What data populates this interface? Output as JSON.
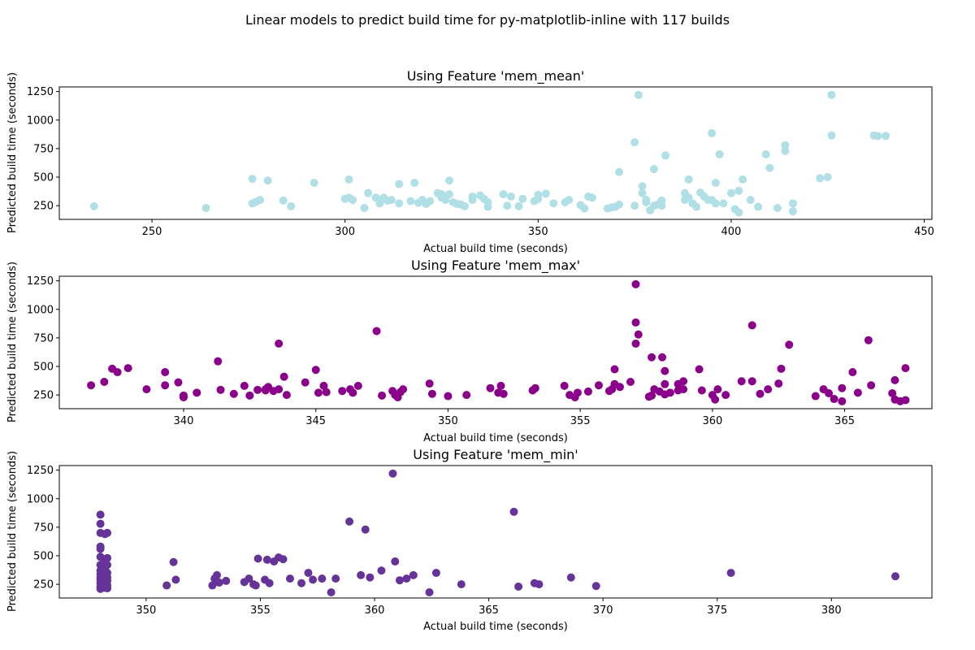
{
  "figure": {
    "suptitle": "Linear models to predict build time for py-matplotlib-inline with 117 builds"
  },
  "chart_data": [
    {
      "type": "scatter",
      "title": "Using Feature 'mem_mean'",
      "xlabel": "Actual build time (seconds)",
      "ylabel": "Predicted build time (seconds)",
      "xlim": [
        226,
        452
      ],
      "ylim": [
        130,
        1290
      ],
      "xticks": [
        250,
        300,
        350,
        400,
        450
      ],
      "yticks": [
        250,
        500,
        750,
        1000,
        1250
      ],
      "color": "#b0dfe5",
      "grid": false,
      "points": [
        [
          235,
          245
        ],
        [
          264,
          230
        ],
        [
          276,
          485
        ],
        [
          276,
          270
        ],
        [
          277,
          285
        ],
        [
          278,
          300
        ],
        [
          280,
          470
        ],
        [
          284,
          295
        ],
        [
          286,
          245
        ],
        [
          292,
          450
        ],
        [
          300,
          310
        ],
        [
          301,
          320
        ],
        [
          301,
          480
        ],
        [
          302,
          300
        ],
        [
          305,
          230
        ],
        [
          306,
          360
        ],
        [
          308,
          320
        ],
        [
          309,
          270
        ],
        [
          310,
          320
        ],
        [
          311,
          295
        ],
        [
          312,
          300
        ],
        [
          314,
          440
        ],
        [
          314,
          270
        ],
        [
          317,
          290
        ],
        [
          318,
          450
        ],
        [
          319,
          275
        ],
        [
          320,
          300
        ],
        [
          321,
          265
        ],
        [
          321,
          275
        ],
        [
          322,
          290
        ],
        [
          324,
          360
        ],
        [
          325,
          350
        ],
        [
          325,
          320
        ],
        [
          326,
          300
        ],
        [
          327,
          350
        ],
        [
          327,
          470
        ],
        [
          328,
          280
        ],
        [
          329,
          265
        ],
        [
          330,
          260
        ],
        [
          331,
          245
        ],
        [
          333,
          300
        ],
        [
          333,
          330
        ],
        [
          335,
          340
        ],
        [
          336,
          310
        ],
        [
          337,
          280
        ],
        [
          337,
          240
        ],
        [
          341,
          350
        ],
        [
          342,
          250
        ],
        [
          343,
          330
        ],
        [
          345,
          245
        ],
        [
          346,
          310
        ],
        [
          349,
          290
        ],
        [
          350,
          310
        ],
        [
          350,
          345
        ],
        [
          352,
          355
        ],
        [
          354,
          270
        ],
        [
          357,
          280
        ],
        [
          358,
          300
        ],
        [
          361,
          255
        ],
        [
          362,
          225
        ],
        [
          363,
          330
        ],
        [
          364,
          320
        ],
        [
          368,
          225
        ],
        [
          369,
          235
        ],
        [
          370,
          240
        ],
        [
          371,
          260
        ],
        [
          371,
          545
        ],
        [
          375,
          805
        ],
        [
          375,
          250
        ],
        [
          376,
          1220
        ],
        [
          377,
          420
        ],
        [
          377,
          360
        ],
        [
          378,
          300
        ],
        [
          378,
          280
        ],
        [
          379,
          210
        ],
        [
          380,
          570
        ],
        [
          380,
          250
        ],
        [
          381,
          260
        ],
        [
          382,
          250
        ],
        [
          382,
          295
        ],
        [
          383,
          690
        ],
        [
          388,
          300
        ],
        [
          388,
          360
        ],
        [
          389,
          480
        ],
        [
          389,
          320
        ],
        [
          390,
          270
        ],
        [
          391,
          240
        ],
        [
          392,
          365
        ],
        [
          393,
          330
        ],
        [
          394,
          300
        ],
        [
          395,
          885
        ],
        [
          395,
          300
        ],
        [
          396,
          450
        ],
        [
          396,
          270
        ],
        [
          397,
          700
        ],
        [
          398,
          270
        ],
        [
          400,
          360
        ],
        [
          401,
          220
        ],
        [
          402,
          380
        ],
        [
          402,
          190
        ],
        [
          403,
          480
        ],
        [
          405,
          300
        ],
        [
          407,
          240
        ],
        [
          409,
          700
        ],
        [
          410,
          580
        ],
        [
          412,
          230
        ],
        [
          414,
          730
        ],
        [
          414,
          780
        ],
        [
          416,
          200
        ],
        [
          416,
          270
        ],
        [
          423,
          490
        ],
        [
          426,
          1220
        ],
        [
          426,
          865
        ],
        [
          425,
          500
        ],
        [
          437,
          865
        ],
        [
          438,
          860
        ],
        [
          440,
          860
        ]
      ]
    },
    {
      "type": "scatter",
      "title": "Using Feature 'mem_max'",
      "xlabel": "Actual build time (seconds)",
      "ylabel": "Predicted build time (seconds)",
      "xlim": [
        335.3,
        368.3
      ],
      "ylim": [
        130,
        1290
      ],
      "xticks": [
        335,
        340,
        345,
        350,
        355,
        360,
        365
      ],
      "yticks": [
        250,
        500,
        750,
        1000,
        1250
      ],
      "color": "#8b008b",
      "grid": false,
      "points": [
        [
          336.5,
          335
        ],
        [
          337,
          365
        ],
        [
          337.3,
          480
        ],
        [
          337.5,
          450
        ],
        [
          337.9,
          485
        ],
        [
          338.6,
          300
        ],
        [
          339.3,
          450
        ],
        [
          339.3,
          335
        ],
        [
          339.8,
          360
        ],
        [
          340,
          230
        ],
        [
          340,
          245
        ],
        [
          340.5,
          270
        ],
        [
          341.3,
          545
        ],
        [
          341.4,
          295
        ],
        [
          341.9,
          260
        ],
        [
          342.3,
          330
        ],
        [
          342.5,
          245
        ],
        [
          342.8,
          295
        ],
        [
          343.1,
          300
        ],
        [
          343.1,
          290
        ],
        [
          343.2,
          320
        ],
        [
          343.4,
          285
        ],
        [
          343.6,
          700
        ],
        [
          343.6,
          300
        ],
        [
          343.8,
          410
        ],
        [
          343.9,
          250
        ],
        [
          344.6,
          360
        ],
        [
          345,
          470
        ],
        [
          345.1,
          270
        ],
        [
          345.3,
          330
        ],
        [
          345.4,
          275
        ],
        [
          346,
          285
        ],
        [
          346.3,
          300
        ],
        [
          346.4,
          270
        ],
        [
          346.6,
          330
        ],
        [
          347.3,
          810
        ],
        [
          347.5,
          245
        ],
        [
          347.9,
          285
        ],
        [
          348,
          250
        ],
        [
          348.1,
          230
        ],
        [
          348.2,
          275
        ],
        [
          348.3,
          300
        ],
        [
          349.3,
          350
        ],
        [
          349.4,
          260
        ],
        [
          350,
          240
        ],
        [
          350.7,
          250
        ],
        [
          351.6,
          310
        ],
        [
          351.9,
          270
        ],
        [
          352,
          330
        ],
        [
          352.1,
          260
        ],
        [
          353.2,
          290
        ],
        [
          353.3,
          310
        ],
        [
          354.4,
          330
        ],
        [
          354.6,
          250
        ],
        [
          354.8,
          230
        ],
        [
          354.9,
          270
        ],
        [
          355.3,
          280
        ],
        [
          355.7,
          335
        ],
        [
          356.1,
          285
        ],
        [
          356.2,
          300
        ],
        [
          356.3,
          475
        ],
        [
          356.3,
          345
        ],
        [
          356.5,
          320
        ],
        [
          356.9,
          365
        ],
        [
          357.1,
          1220
        ],
        [
          357.1,
          885
        ],
        [
          357.1,
          700
        ],
        [
          357.2,
          780
        ],
        [
          357.6,
          235
        ],
        [
          357.7,
          580
        ],
        [
          357.7,
          245
        ],
        [
          357.8,
          300
        ],
        [
          358,
          280
        ],
        [
          358.1,
          580
        ],
        [
          358.2,
          460
        ],
        [
          358.2,
          345
        ],
        [
          358.2,
          255
        ],
        [
          358.4,
          270
        ],
        [
          358.7,
          290
        ],
        [
          358.7,
          345
        ],
        [
          358.9,
          300
        ],
        [
          358.9,
          370
        ],
        [
          359.5,
          475
        ],
        [
          359.6,
          290
        ],
        [
          360,
          250
        ],
        [
          360.1,
          210
        ],
        [
          360.2,
          300
        ],
        [
          360.5,
          250
        ],
        [
          361.1,
          370
        ],
        [
          361.5,
          370
        ],
        [
          361.5,
          860
        ],
        [
          361.8,
          260
        ],
        [
          362.1,
          300
        ],
        [
          362.5,
          350
        ],
        [
          362.6,
          480
        ],
        [
          362.9,
          690
        ],
        [
          363.9,
          240
        ],
        [
          364.2,
          300
        ],
        [
          364.4,
          265
        ],
        [
          364.6,
          215
        ],
        [
          364.9,
          195
        ],
        [
          364.9,
          310
        ],
        [
          365.3,
          450
        ],
        [
          365.5,
          270
        ],
        [
          365.9,
          730
        ],
        [
          366,
          335
        ],
        [
          366.8,
          265
        ],
        [
          366.9,
          210
        ],
        [
          366.9,
          380
        ],
        [
          367.1,
          195
        ],
        [
          367.3,
          485
        ],
        [
          367.3,
          205
        ]
      ]
    },
    {
      "type": "scatter",
      "title": "Using Feature 'mem_min'",
      "xlabel": "Actual build time (seconds)",
      "ylabel": "Predicted build time (seconds)",
      "xlim": [
        346.2,
        384.4
      ],
      "ylim": [
        130,
        1290
      ],
      "xticks": [
        350,
        355,
        360,
        365,
        370,
        375,
        380
      ],
      "yticks": [
        250,
        500,
        750,
        1000,
        1250
      ],
      "color": "#663399",
      "grid": false,
      "points": [
        [
          348,
          860
        ],
        [
          348,
          780
        ],
        [
          348,
          700
        ],
        [
          348,
          580
        ],
        [
          348,
          560
        ],
        [
          348,
          490
        ],
        [
          348,
          420
        ],
        [
          348,
          370
        ],
        [
          348,
          340
        ],
        [
          348,
          310
        ],
        [
          348,
          290
        ],
        [
          348,
          260
        ],
        [
          348,
          230
        ],
        [
          348,
          210
        ],
        [
          348.2,
          690
        ],
        [
          348.2,
          470
        ],
        [
          348.2,
          440
        ],
        [
          348.2,
          380
        ],
        [
          348.2,
          330
        ],
        [
          348.2,
          300
        ],
        [
          348.2,
          270
        ],
        [
          348.2,
          250
        ],
        [
          348.2,
          220
        ],
        [
          348.3,
          700
        ],
        [
          348.3,
          480
        ],
        [
          348.3,
          420
        ],
        [
          348.3,
          350
        ],
        [
          348.3,
          310
        ],
        [
          348.3,
          280
        ],
        [
          348.3,
          240
        ],
        [
          348.3,
          215
        ],
        [
          350.9,
          240
        ],
        [
          351.2,
          445
        ],
        [
          351.3,
          290
        ],
        [
          352.9,
          240
        ],
        [
          353,
          300
        ],
        [
          353.1,
          330
        ],
        [
          353.2,
          265
        ],
        [
          353.5,
          280
        ],
        [
          354.3,
          270
        ],
        [
          354.5,
          300
        ],
        [
          354.7,
          250
        ],
        [
          354.8,
          240
        ],
        [
          354.9,
          475
        ],
        [
          355.2,
          290
        ],
        [
          355.3,
          465
        ],
        [
          355.4,
          260
        ],
        [
          355.6,
          450
        ],
        [
          355.8,
          485
        ],
        [
          356,
          470
        ],
        [
          356.3,
          300
        ],
        [
          356.8,
          260
        ],
        [
          357.1,
          350
        ],
        [
          357.3,
          290
        ],
        [
          357.7,
          300
        ],
        [
          358.1,
          180
        ],
        [
          358.3,
          300
        ],
        [
          358.9,
          800
        ],
        [
          359.4,
          330
        ],
        [
          359.6,
          730
        ],
        [
          359.8,
          310
        ],
        [
          360.3,
          370
        ],
        [
          360.8,
          1220
        ],
        [
          360.9,
          450
        ],
        [
          361.1,
          285
        ],
        [
          361.4,
          300
        ],
        [
          361.7,
          330
        ],
        [
          362.4,
          180
        ],
        [
          362.7,
          350
        ],
        [
          363.8,
          250
        ],
        [
          366.1,
          885
        ],
        [
          366.3,
          230
        ],
        [
          367,
          260
        ],
        [
          367.2,
          250
        ],
        [
          368.6,
          310
        ],
        [
          369.7,
          235
        ],
        [
          375.6,
          350
        ],
        [
          382.8,
          320
        ]
      ]
    }
  ]
}
